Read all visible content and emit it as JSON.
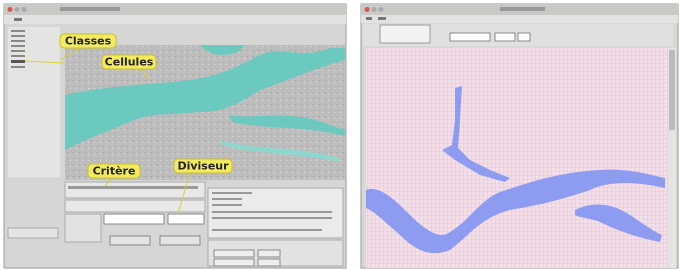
{
  "callouts": {
    "classes": "Classes",
    "cellules": "Cellules",
    "critere": "Critère",
    "diviseur": "Diviseur"
  }
}
